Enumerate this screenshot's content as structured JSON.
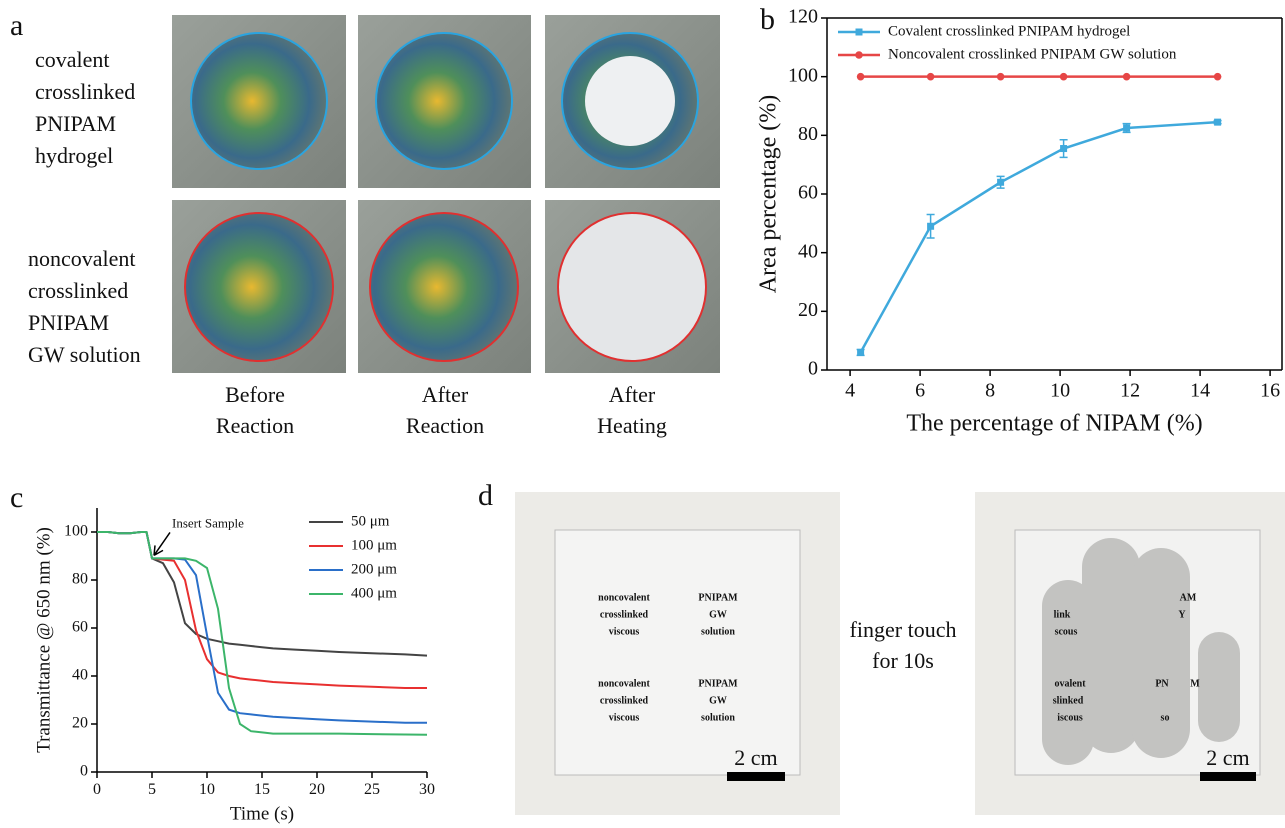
{
  "panel_a": {
    "label": "a",
    "row_labels": [
      [
        "covalent",
        "crosslinked",
        "PNIPAM",
        "hydrogel"
      ],
      [
        "noncovalent",
        "crosslinked",
        "PNIPAM",
        "GW solution"
      ]
    ],
    "column_labels": [
      [
        "Before",
        "Reaction"
      ],
      [
        "After",
        "Reaction"
      ],
      [
        "After",
        "Heating"
      ]
    ]
  },
  "chart_data": [
    {
      "type": "line",
      "label": "b",
      "xlabel": "The percentage of NIPAM (%)",
      "ylabel": "Area percentage (%)",
      "x": [
        4.3,
        6.3,
        8.3,
        10.1,
        11.9,
        14.5
      ],
      "series": [
        {
          "name": "Covalent crosslinked PNIPAM hydrogel",
          "color": "#3fa9dc",
          "marker": "square",
          "values": [
            6,
            49,
            64,
            75.5,
            82.5,
            84.5
          ],
          "errors": [
            1,
            4,
            2,
            3,
            1.5,
            0.5
          ]
        },
        {
          "name": "Noncovalent crosslinked PNIPAM GW solution",
          "color": "#e64646",
          "marker": "circle",
          "values": [
            100,
            100,
            100,
            100,
            100,
            100
          ]
        }
      ],
      "xlim": [
        3.34,
        16.34
      ],
      "xticks": [
        4,
        6,
        8,
        10,
        12,
        14,
        16
      ],
      "ylim": [
        0,
        120
      ],
      "yticks": [
        0,
        20,
        40,
        60,
        80,
        100,
        120
      ],
      "box": true,
      "legend": "upper left"
    },
    {
      "type": "line",
      "label": "c",
      "xlabel": "Time (s)",
      "ylabel": "Transmittance @ 650 nm (%)",
      "annotation": "Insert Sample",
      "x": [
        0,
        1,
        2,
        3,
        4,
        4.5,
        5,
        6,
        7,
        8,
        9,
        10,
        11,
        12,
        13,
        14,
        15,
        16,
        18,
        20,
        22,
        25,
        28,
        30
      ],
      "series": [
        {
          "name": "50 μm",
          "color": "#444444",
          "values": [
            100,
            100,
            99.5,
            99.5,
            100,
            100,
            89,
            87,
            79,
            62,
            57.5,
            55.5,
            54.5,
            53.5,
            53,
            52.5,
            52,
            51.5,
            51,
            50.5,
            50,
            49.5,
            49,
            48.5
          ]
        },
        {
          "name": "100 μm",
          "color": "#e83030",
          "values": [
            100,
            100,
            99.5,
            99.5,
            100,
            100,
            89,
            88.5,
            88,
            80,
            59,
            47,
            41.5,
            40,
            39,
            38.5,
            38,
            37.5,
            37,
            36.5,
            36,
            35.5,
            35,
            35
          ]
        },
        {
          "name": "200 μm",
          "color": "#2a6fc9",
          "values": [
            100,
            100,
            99.5,
            99.5,
            100,
            100,
            89,
            89,
            89,
            88.5,
            82,
            57,
            33,
            26,
            24.5,
            24,
            23.5,
            23,
            22.5,
            22,
            21.5,
            21,
            20.5,
            20.5
          ]
        },
        {
          "name": "400 μm",
          "color": "#3cb56a",
          "values": [
            100,
            100,
            99.5,
            99.5,
            100,
            100,
            89,
            89,
            89,
            89,
            88,
            85,
            68,
            35,
            20,
            17,
            16.5,
            16,
            16,
            16,
            16,
            15.8,
            15.6,
            15.5
          ]
        }
      ],
      "xlim": [
        0,
        30
      ],
      "xticks": [
        0,
        5,
        10,
        15,
        20,
        25,
        30
      ],
      "ylim": [
        0,
        110
      ],
      "yticks": [
        0,
        20,
        40,
        60,
        80,
        100
      ],
      "box": false,
      "legend": "upper right"
    }
  ],
  "panel_d": {
    "label": "d",
    "left_photo_text": [
      "noncovalent",
      "crosslinked",
      "viscous",
      "PNIPAM",
      "GW",
      "solution",
      "noncovalent",
      "crosslinked",
      "viscous",
      "PNIPAM",
      "GW",
      "solution"
    ],
    "right_photo_text": [
      "AM",
      "link",
      "scous",
      "Y",
      "ovalent",
      "slinked",
      "iscous",
      "PN",
      "M",
      "so"
    ],
    "caption": [
      "finger touch",
      "for 10s"
    ],
    "scale_bar": "2 cm"
  }
}
